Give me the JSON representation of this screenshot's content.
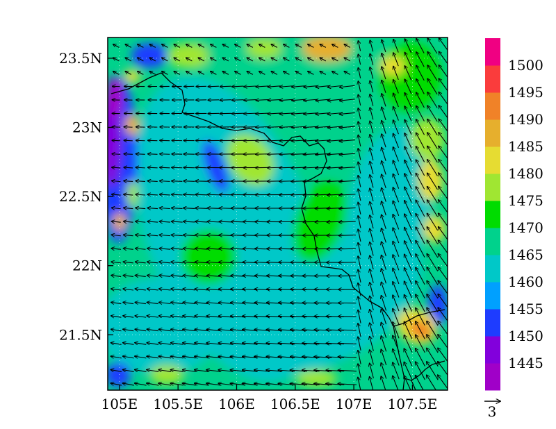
{
  "map": {
    "lon_range": [
      104.9,
      107.8
    ],
    "lat_range": [
      21.1,
      23.65
    ],
    "x_ticks": [
      {
        "value": 105.0,
        "label": "105E"
      },
      {
        "value": 105.5,
        "label": "105.5E"
      },
      {
        "value": 106.0,
        "label": "106E"
      },
      {
        "value": 106.5,
        "label": "106.5E"
      },
      {
        "value": 107.0,
        "label": "107E"
      },
      {
        "value": 107.5,
        "label": "107.5E"
      }
    ],
    "y_ticks": [
      {
        "value": 23.5,
        "label": "23.5N"
      },
      {
        "value": 23.0,
        "label": "23N"
      },
      {
        "value": 22.5,
        "label": "22.5N"
      },
      {
        "value": 22.0,
        "label": "22N"
      },
      {
        "value": 21.5,
        "label": "21.5N"
      }
    ],
    "grid": true
  },
  "colorbar": {
    "levels": [
      "1445",
      "1450",
      "1455",
      "1460",
      "1465",
      "1470",
      "1475",
      "1480",
      "1485",
      "1490",
      "1495",
      "1500"
    ],
    "colors": [
      "#a000c8",
      "#8200dc",
      "#1e3cff",
      "#00a0ff",
      "#00c8c8",
      "#00d28c",
      "#00dc00",
      "#a0e632",
      "#e6dc32",
      "#e6af2d",
      "#f08228",
      "#fa3c3c",
      "#f00082"
    ]
  },
  "vector_reference": {
    "label": "3"
  }
}
